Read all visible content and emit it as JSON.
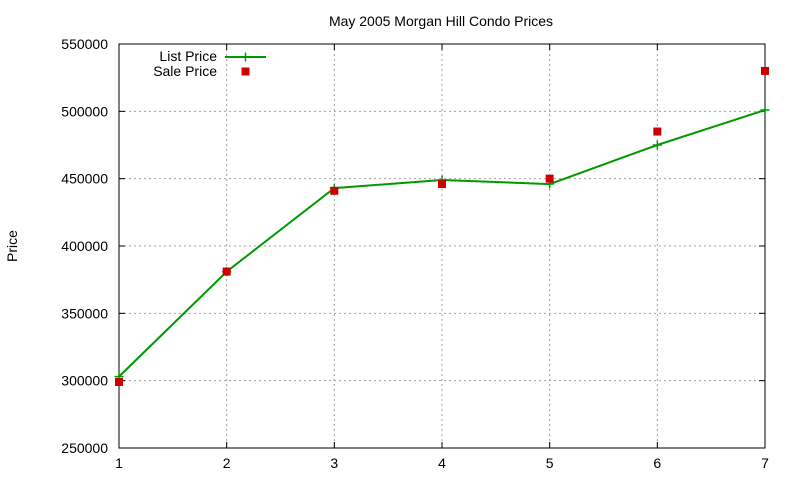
{
  "chart_data": {
    "type": "line",
    "title": "May 2005 Morgan Hill Condo Prices",
    "xlabel": "",
    "ylabel": "Price",
    "xlim": [
      1,
      7
    ],
    "ylim": [
      250000,
      550000
    ],
    "x_ticks": [
      "1",
      "2",
      "3",
      "4",
      "5",
      "6",
      "7"
    ],
    "y_ticks": [
      "250000",
      "300000",
      "350000",
      "400000",
      "450000",
      "500000",
      "550000"
    ],
    "grid": true,
    "legend_position": "top-left",
    "x": [
      1,
      2,
      3,
      4,
      5,
      6,
      7
    ],
    "series": [
      {
        "name": "List Price",
        "style": "line with plus markers",
        "color": "#009900",
        "values": [
          303000,
          381000,
          443000,
          449000,
          446000,
          475000,
          501000
        ]
      },
      {
        "name": "Sale Price",
        "style": "square markers",
        "color": "#cc0000",
        "values": [
          299000,
          381000,
          441000,
          446000,
          450000,
          485000,
          530000
        ]
      }
    ]
  }
}
